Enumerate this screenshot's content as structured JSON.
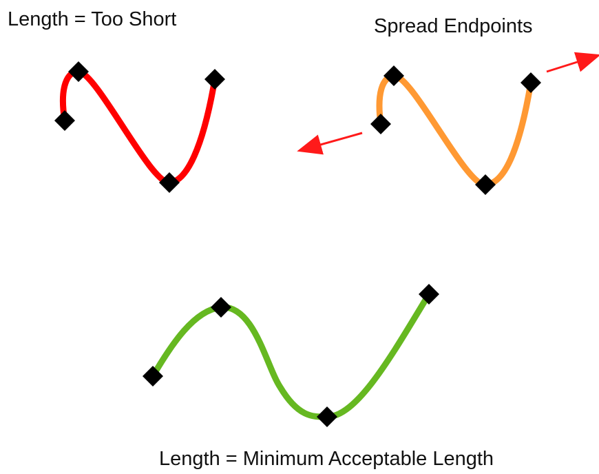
{
  "labels": {
    "too_short": "Length = Too Short",
    "spread_endpoints": "Spread Endpoints",
    "minimum_length": "Length = Minimum Acceptable Length"
  },
  "colors": {
    "too_short_curve": "#ff0000",
    "spread_curve": "#ff9933",
    "minimum_curve": "#66b821",
    "marker": "#000000",
    "arrow": "#ff1a1a",
    "text": "#111111"
  }
}
